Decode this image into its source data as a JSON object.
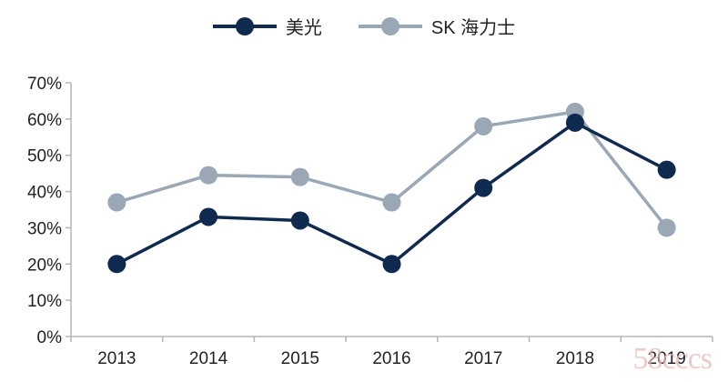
{
  "chart_data": {
    "type": "line",
    "categories": [
      "2013",
      "2014",
      "2015",
      "2016",
      "2017",
      "2018",
      "2019"
    ],
    "series": [
      {
        "name": "美光",
        "values": [
          20,
          33,
          32,
          20,
          41,
          59,
          46
        ],
        "color": "#0f2a4f"
      },
      {
        "name": "SK 海力士",
        "values": [
          37,
          44.5,
          44,
          37,
          58,
          62,
          30
        ],
        "color": "#9aa8b5"
      }
    ],
    "yticks": [
      "0%",
      "10%",
      "20%",
      "30%",
      "40%",
      "50%",
      "60%",
      "70%"
    ],
    "ylim": [
      0,
      70
    ],
    "legend": "top",
    "grid": false
  },
  "watermark": "58cccs"
}
